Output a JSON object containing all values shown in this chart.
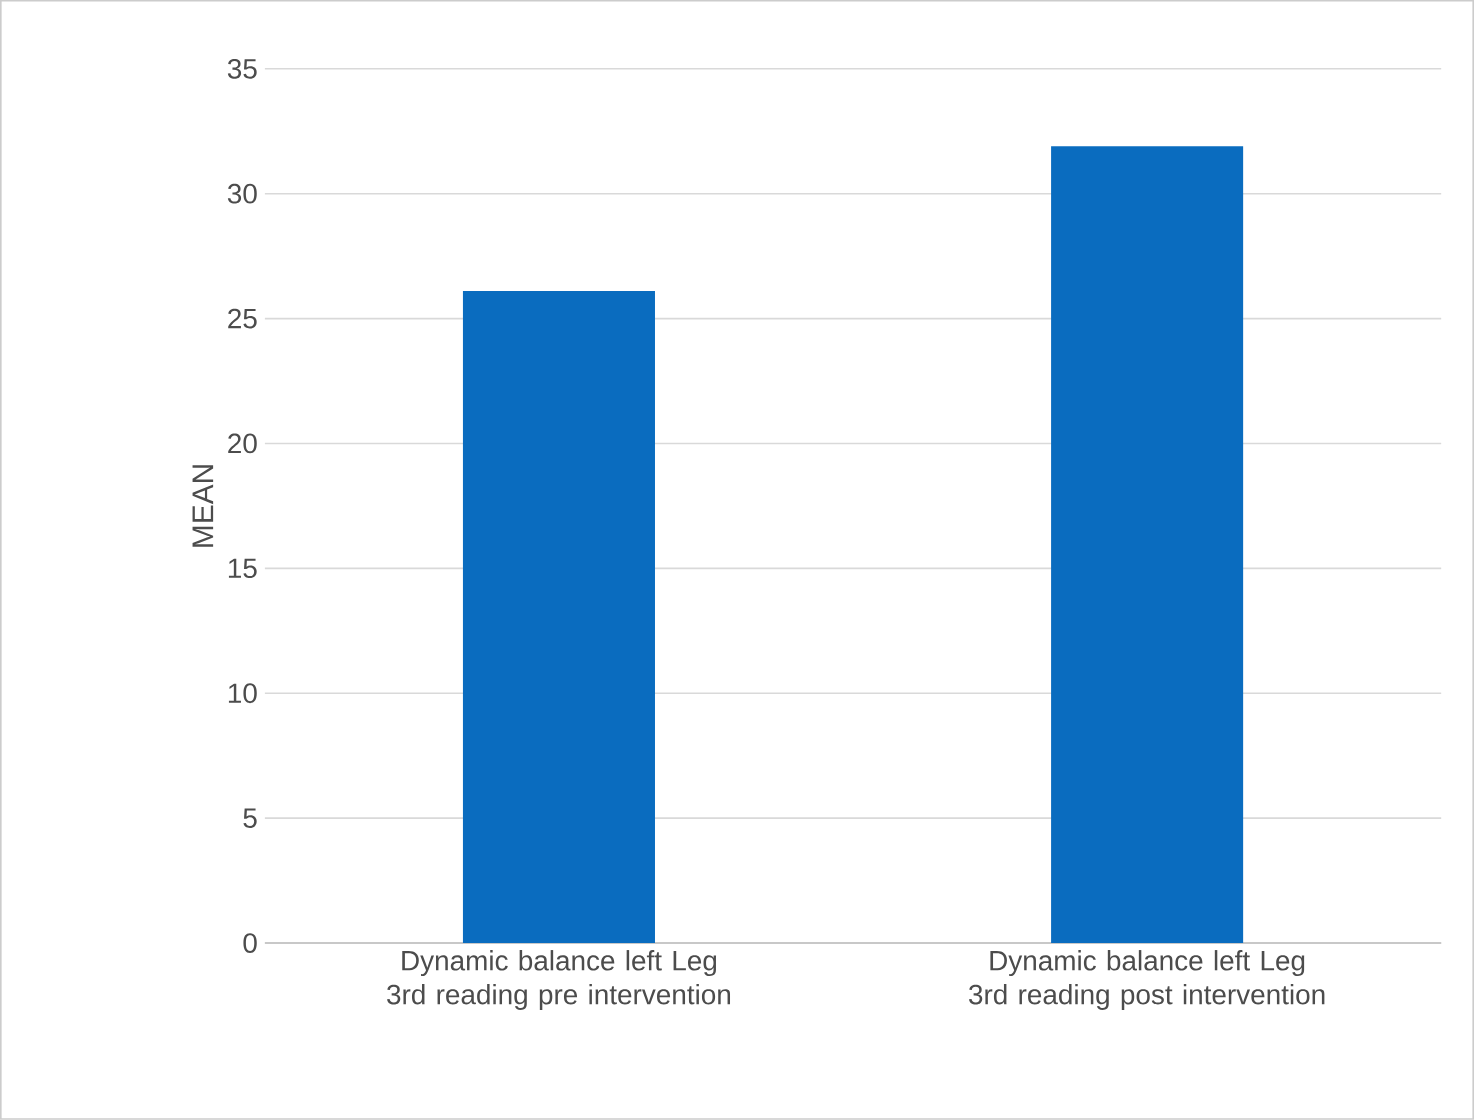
{
  "chart_data": {
    "type": "bar",
    "categories": [
      "Dynamic balance  left Leg 3rd reading pre intervention",
      "Dynamic balance  left Leg 3rd reading post intervention"
    ],
    "values": [
      26.1,
      31.9
    ],
    "color": "#0a6cbf",
    "ylabel": "MEAN",
    "ylim": [
      0,
      35
    ],
    "yticks": [
      0,
      5,
      10,
      15,
      20,
      25,
      30,
      35
    ],
    "grid": "y"
  }
}
